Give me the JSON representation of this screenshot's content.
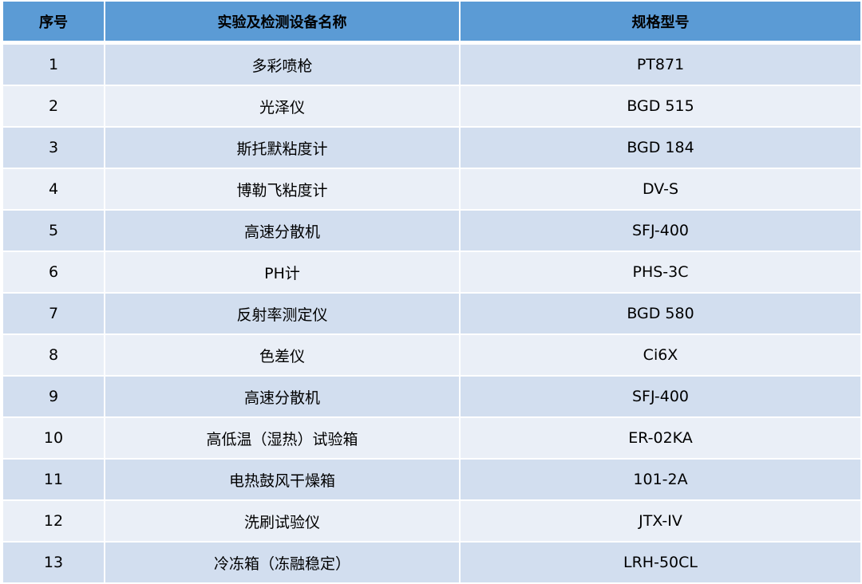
{
  "colors": {
    "header": "#5b9bd5",
    "row_odd": "#d2deef",
    "row_even": "#eaeff7"
  },
  "table": {
    "headers": [
      "序号",
      "实验及检测设备名称",
      "规格型号"
    ],
    "rows": [
      [
        "1",
        "多彩喷枪",
        "PT871"
      ],
      [
        "2",
        "光泽仪",
        "BGD 515"
      ],
      [
        "3",
        "斯托默粘度计",
        "BGD 184"
      ],
      [
        "4",
        "博勒飞粘度计",
        "DV-S"
      ],
      [
        "5",
        "高速分散机",
        "SFJ-400"
      ],
      [
        "6",
        "PH计",
        "PHS-3C"
      ],
      [
        "7",
        "反射率测定仪",
        "BGD 580"
      ],
      [
        "8",
        "色差仪",
        "Ci6X"
      ],
      [
        "9",
        "高速分散机",
        "SFJ-400"
      ],
      [
        "10",
        "高低温（湿热）试验箱",
        "ER-02KA"
      ],
      [
        "11",
        "电热鼓风干燥箱",
        "101-2A"
      ],
      [
        "12",
        "洗刷试验仪",
        "JTX-IV"
      ],
      [
        "13",
        "冷冻箱（冻融稳定）",
        "LRH-50CL"
      ]
    ]
  }
}
